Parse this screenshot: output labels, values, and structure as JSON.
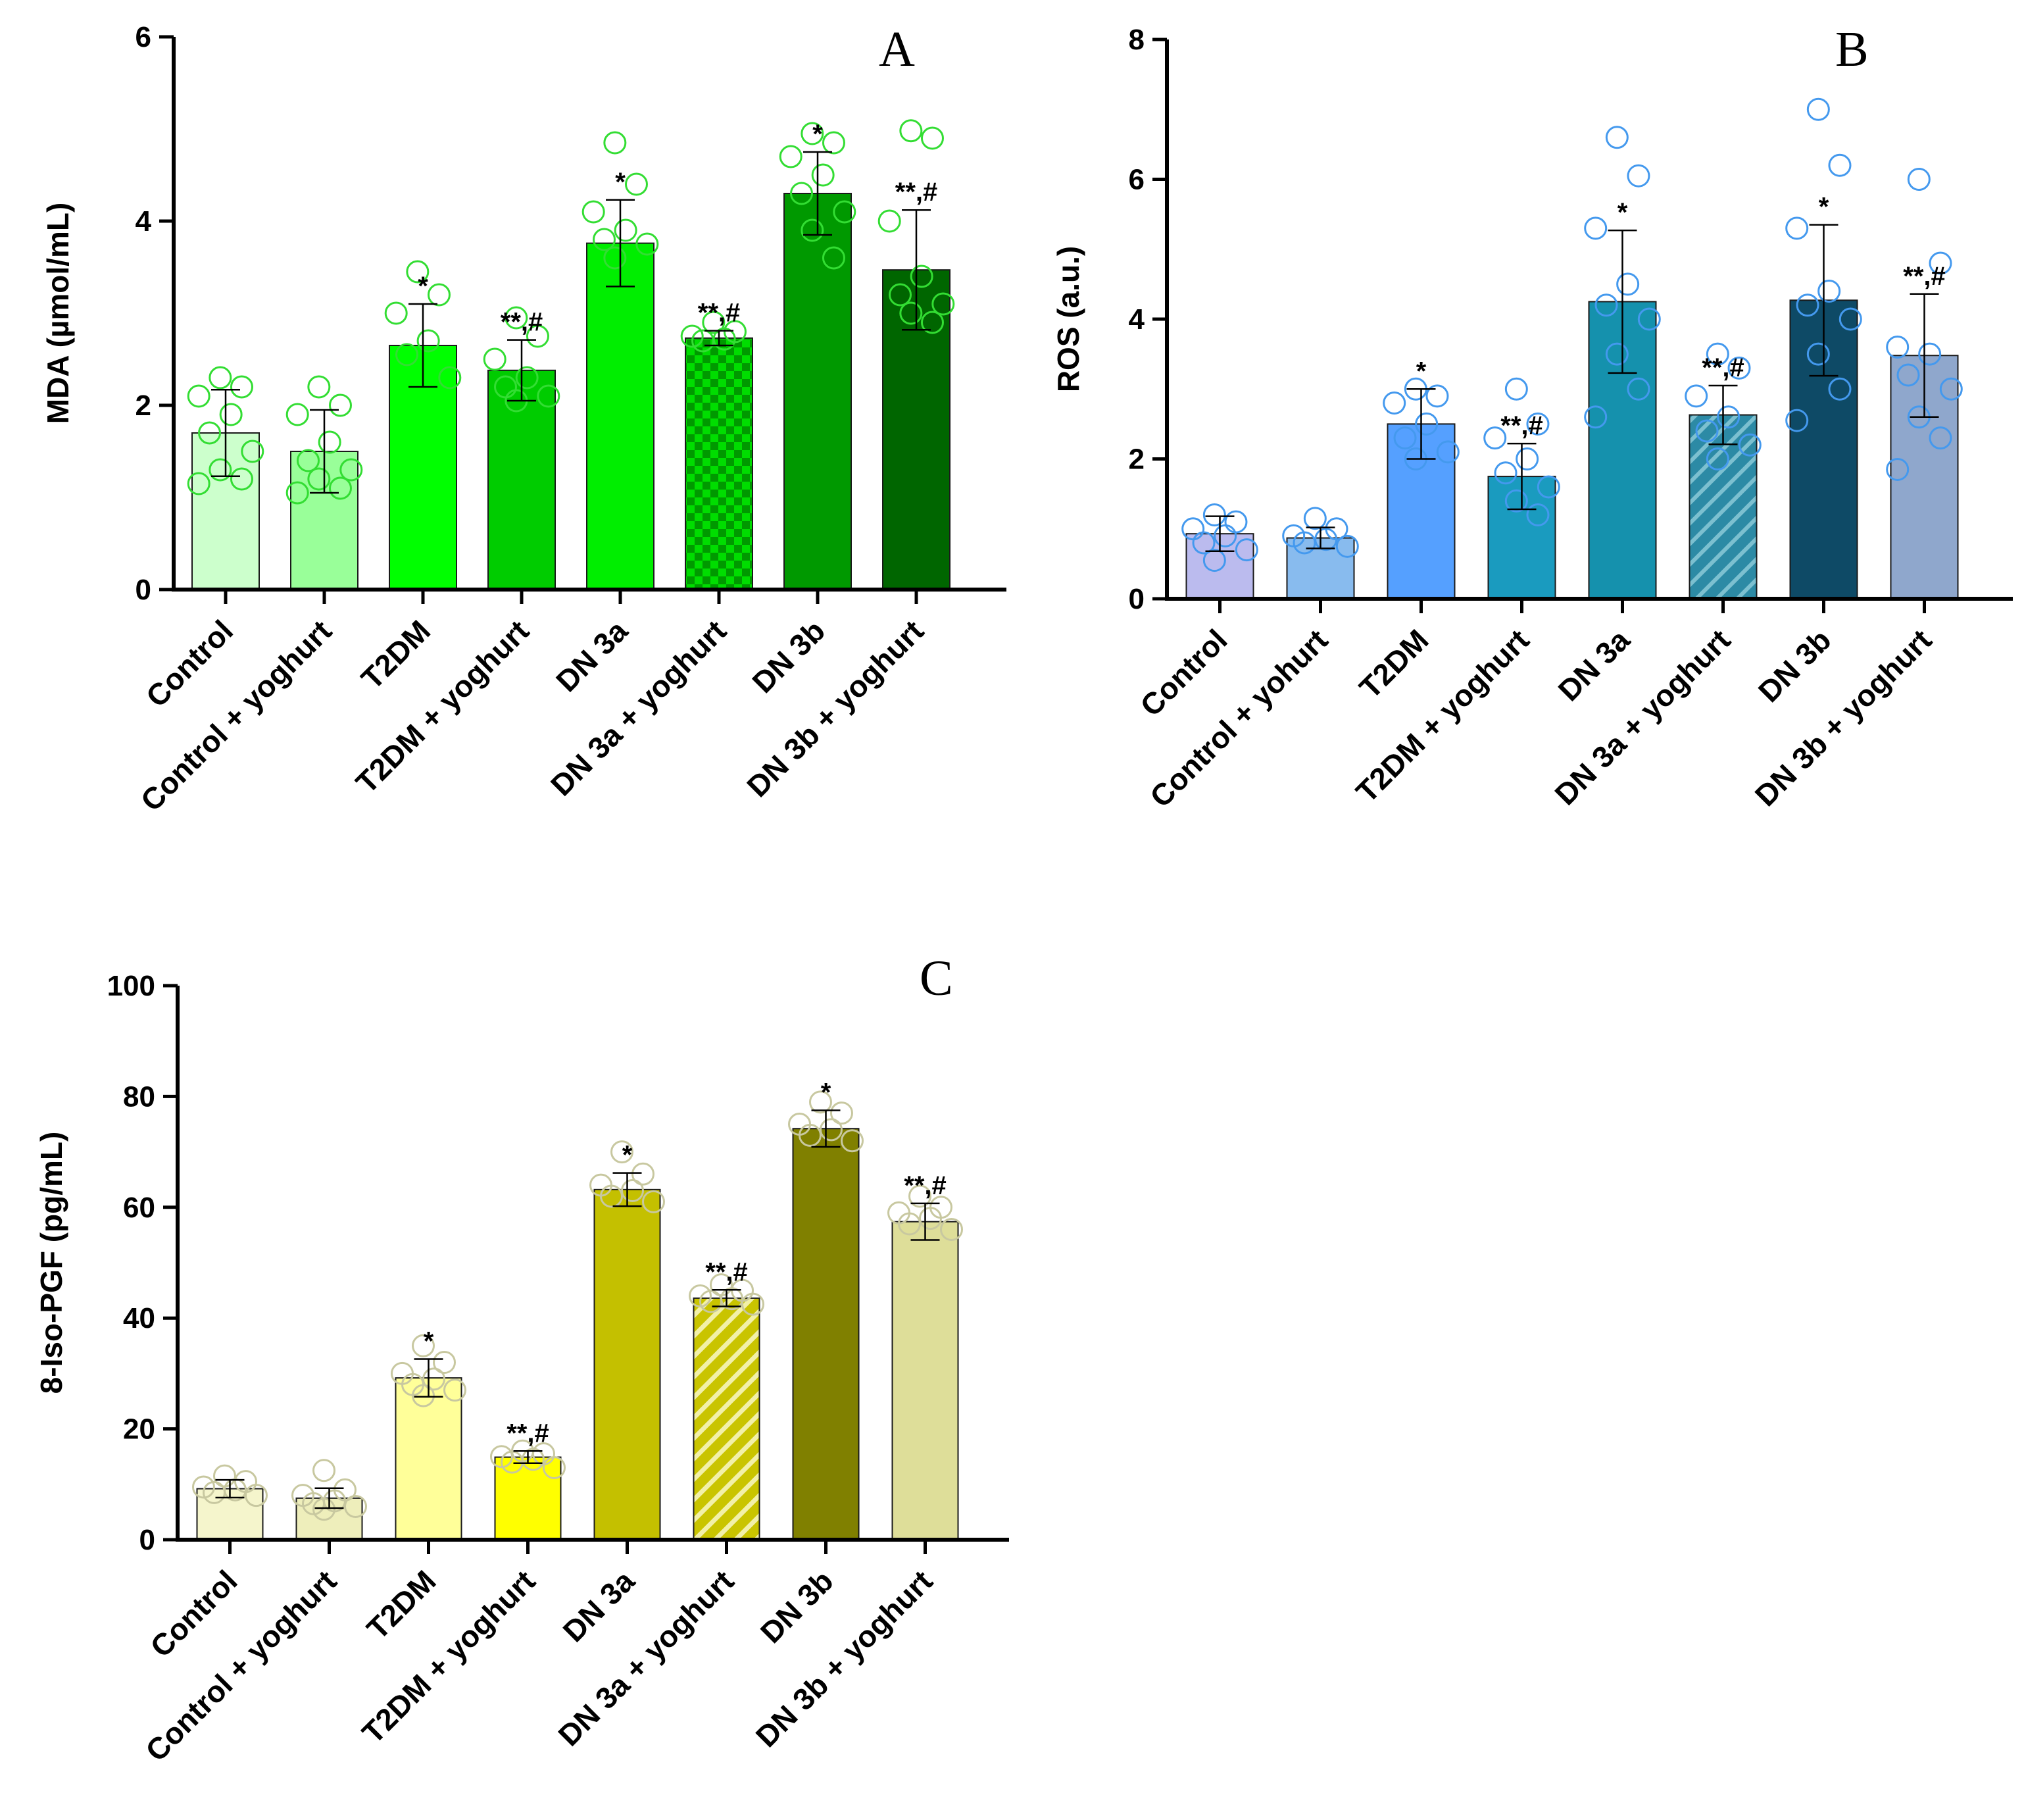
{
  "chart_data": [
    {
      "type": "bar",
      "panel": "A",
      "ylabel": "MDA (µmol/mL)",
      "ylim": [
        0,
        6
      ],
      "yticks": [
        0,
        2,
        4,
        6
      ],
      "categories": [
        "Control",
        "Control + yoghurt",
        "T2DM",
        "T2DM + yoghurt",
        "DN 3a",
        "DN 3a + yoghurt",
        "DN 3b",
        "DN 3b + yoghurt"
      ],
      "values": [
        1.7,
        1.5,
        2.65,
        2.38,
        3.76,
        2.73,
        4.3,
        3.47
      ],
      "errors": [
        0.47,
        0.45,
        0.45,
        0.33,
        0.47,
        0.08,
        0.45,
        0.65
      ],
      "significance": [
        "",
        "",
        "*",
        "**,#",
        "*",
        "**,#",
        "*",
        "**,#"
      ],
      "bar_colors": [
        "#ccffcc",
        "#99ff99",
        "#00ff00",
        "#00cc00",
        "#00ee00",
        "#00dd00",
        "#009900",
        "#006600"
      ],
      "bar_patterns": [
        "solid",
        "solid",
        "solid",
        "solid",
        "solid",
        "checker",
        "solid",
        "solid"
      ],
      "point_color": "#33dd33",
      "points": [
        [
          2.3,
          2.2,
          2.1,
          1.9,
          1.7,
          1.5,
          1.3,
          1.2,
          1.15
        ],
        [
          2.2,
          2.0,
          1.9,
          1.6,
          1.4,
          1.3,
          1.2,
          1.1,
          1.05
        ],
        [
          3.45,
          3.2,
          3.0,
          2.7,
          2.55,
          2.3
        ],
        [
          2.95,
          2.75,
          2.5,
          2.3,
          2.2,
          2.1,
          2.05
        ],
        [
          4.85,
          4.4,
          4.1,
          3.9,
          3.8,
          3.75,
          3.6
        ],
        [
          2.9,
          2.8,
          2.75,
          2.72,
          2.7
        ],
        [
          4.95,
          4.85,
          4.7,
          4.5,
          4.3,
          4.1,
          3.9,
          3.6
        ],
        [
          4.98,
          4.9,
          4.0,
          3.4,
          3.2,
          3.1,
          3.0,
          2.9
        ]
      ]
    },
    {
      "type": "bar",
      "panel": "B",
      "ylabel": "ROS (a.u.)",
      "ylim": [
        0,
        8
      ],
      "yticks": [
        0,
        2,
        4,
        6,
        8
      ],
      "categories": [
        "Control",
        "Control + yohurt",
        "T2DM",
        "T2DM + yoghurt",
        "DN 3a",
        "DN 3a + yoghurt",
        "DN 3b",
        "DN 3b + yoghurt"
      ],
      "values": [
        0.93,
        0.87,
        2.5,
        1.75,
        4.25,
        2.63,
        4.27,
        3.48
      ],
      "errors": [
        0.25,
        0.15,
        0.5,
        0.47,
        1.02,
        0.42,
        1.08,
        0.88
      ],
      "significance": [
        "",
        "",
        "*",
        "**,#",
        "*",
        "**,#",
        "*",
        "**,#"
      ],
      "bar_colors": [
        "#bbbbee",
        "#88bbee",
        "#55a0ff",
        "#1a9bbf",
        "#1591ad",
        "#2c8aa5",
        "#0e4a66",
        "#8fa7cc"
      ],
      "bar_patterns": [
        "solid",
        "solid",
        "solid",
        "solid",
        "solid",
        "hatch",
        "solid",
        "solid"
      ],
      "point_color": "#4499ee",
      "points": [
        [
          1.2,
          1.1,
          1.0,
          0.9,
          0.8,
          0.7,
          0.55
        ],
        [
          1.15,
          1.0,
          0.9,
          0.85,
          0.8,
          0.75
        ],
        [
          3.0,
          2.9,
          2.8,
          2.5,
          2.3,
          2.1,
          2.0
        ],
        [
          3.0,
          2.5,
          2.3,
          2.0,
          1.8,
          1.6,
          1.4,
          1.2
        ],
        [
          6.6,
          6.05,
          5.3,
          4.5,
          4.2,
          4.0,
          3.5,
          3.0,
          2.6
        ],
        [
          3.5,
          3.3,
          2.9,
          2.6,
          2.4,
          2.2,
          2.0
        ],
        [
          7.0,
          6.2,
          5.3,
          4.4,
          4.2,
          4.0,
          3.5,
          3.0,
          2.55
        ],
        [
          6.0,
          4.8,
          3.6,
          3.5,
          3.2,
          3.0,
          2.6,
          2.3,
          1.85
        ]
      ]
    },
    {
      "type": "bar",
      "panel": "C",
      "ylabel": "8-Iso-PGF (pg/mL)",
      "ylim": [
        0,
        100
      ],
      "yticks": [
        0,
        20,
        40,
        60,
        80,
        100
      ],
      "categories": [
        "Control",
        "Control + yoghurt",
        "T2DM",
        "T2DM + yoghurt",
        "DN 3a",
        "DN 3a + yoghurt",
        "DN 3b",
        "DN 3b + yoghurt"
      ],
      "values": [
        9.2,
        7.5,
        29.2,
        14.9,
        63.2,
        43.6,
        74.2,
        57.4
      ],
      "errors": [
        1.6,
        1.8,
        3.4,
        1.1,
        3.0,
        1.5,
        3.3,
        3.3
      ],
      "significance": [
        "",
        "",
        "*",
        "**,#",
        "*",
        "**,#",
        "*",
        "**,#"
      ],
      "bar_colors": [
        "#f5f5cc",
        "#eeeebb",
        "#ffff99",
        "#ffff00",
        "#c4c000",
        "#c9c400",
        "#808000",
        "#dede99"
      ],
      "bar_patterns": [
        "solid",
        "solid",
        "solid",
        "solid",
        "solid",
        "hatch",
        "solid",
        "solid"
      ],
      "point_color": "#c8c8a0",
      "points": [
        [
          11.5,
          10.5,
          9.5,
          9.0,
          8.5,
          8.0
        ],
        [
          12.5,
          9.0,
          8.0,
          7.0,
          6.5,
          6.0,
          5.5
        ],
        [
          35.0,
          32.0,
          30.0,
          29.0,
          28.0,
          27.0,
          26.0
        ],
        [
          16.0,
          15.5,
          15.0,
          14.5,
          14.0,
          13.0
        ],
        [
          70.0,
          66.0,
          64.0,
          63.0,
          62.0,
          61.0
        ],
        [
          46.0,
          45.0,
          44.0,
          43.5,
          43.0,
          42.5
        ],
        [
          79.0,
          77.0,
          75.0,
          74.0,
          73.0,
          72.0
        ],
        [
          62.0,
          60.0,
          59.0,
          58.0,
          57.0,
          56.0
        ]
      ]
    }
  ]
}
